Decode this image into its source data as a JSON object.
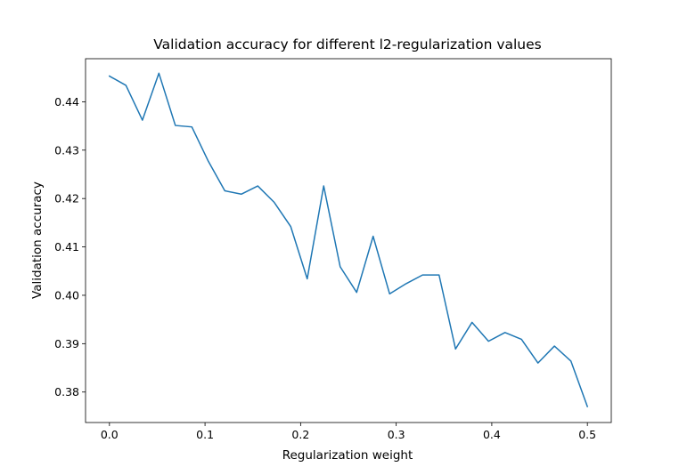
{
  "chart_data": {
    "type": "line",
    "title": "Validation accuracy for different l2-regularization values",
    "xlabel": "Regularization weight",
    "ylabel": "Validation accuracy",
    "xlim": [
      -0.025,
      0.525
    ],
    "ylim": [
      0.3737,
      0.4489
    ],
    "grid": false,
    "line_color": "#1f77b4",
    "xticks": [
      0.0,
      0.1,
      0.2,
      0.3,
      0.4,
      0.5
    ],
    "xtick_labels": [
      "0.0",
      "0.1",
      "0.2",
      "0.3",
      "0.4",
      "0.5"
    ],
    "yticks": [
      0.38,
      0.39,
      0.4,
      0.41,
      0.42,
      0.43,
      0.44
    ],
    "ytick_labels": [
      "0.38",
      "0.39",
      "0.40",
      "0.41",
      "0.42",
      "0.43",
      "0.44"
    ],
    "series": [
      {
        "x": [
          0.0,
          0.01724,
          0.03448,
          0.05172,
          0.06897,
          0.08621,
          0.10345,
          0.12069,
          0.13793,
          0.15517,
          0.17241,
          0.18966,
          0.2069,
          0.22414,
          0.24138,
          0.25862,
          0.27586,
          0.2931,
          0.31034,
          0.32759,
          0.34483,
          0.36207,
          0.37931,
          0.39655,
          0.41379,
          0.43103,
          0.44828,
          0.46552,
          0.48276,
          0.5
        ],
        "y": [
          0.4453,
          0.4434,
          0.4362,
          0.4459,
          0.4351,
          0.4348,
          0.4277,
          0.4216,
          0.4209,
          0.4226,
          0.4192,
          0.4142,
          0.4034,
          0.4226,
          0.4059,
          0.4006,
          0.4122,
          0.4003,
          0.4024,
          0.4042,
          0.4042,
          0.3889,
          0.3944,
          0.3905,
          0.3923,
          0.3909,
          0.386,
          0.3895,
          0.3864,
          0.377
        ]
      }
    ]
  }
}
